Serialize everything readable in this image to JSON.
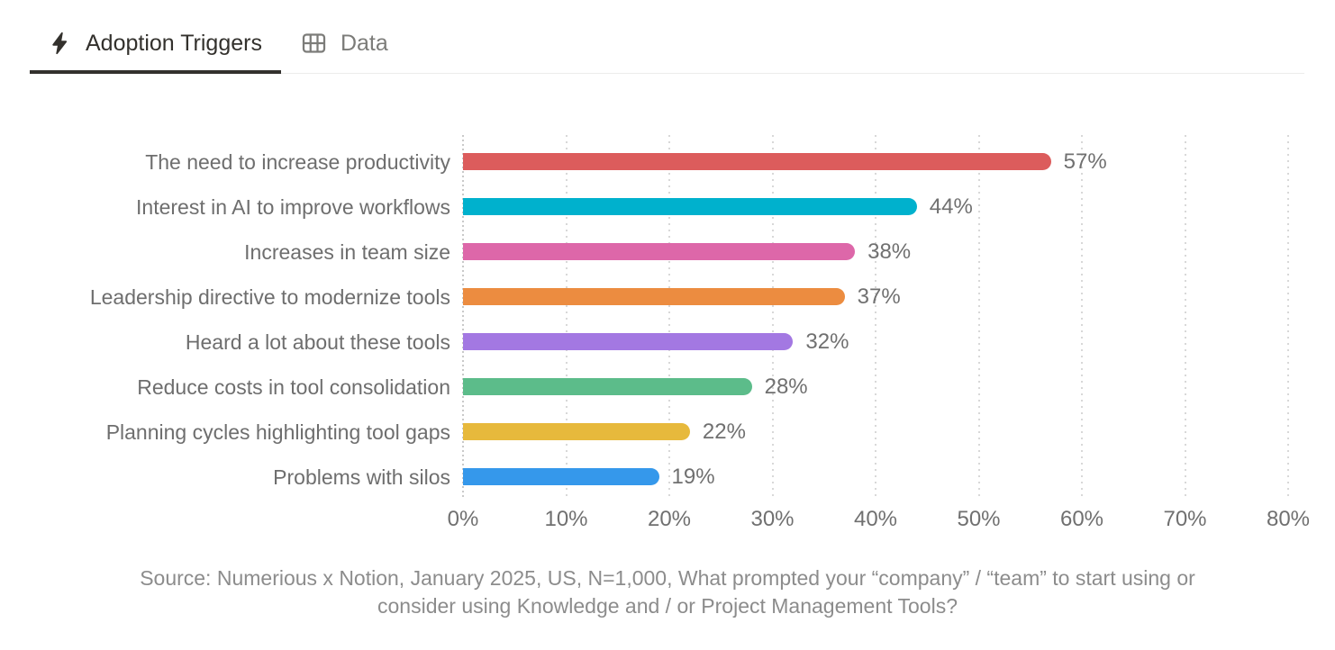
{
  "tabs": [
    {
      "label": "Adoption Triggers",
      "icon": "lightning-bolt-icon",
      "active": true
    },
    {
      "label": "Data",
      "icon": "table-icon",
      "active": false
    }
  ],
  "chart_data": {
    "type": "bar",
    "orientation": "horizontal",
    "title": "Adoption Triggers",
    "categories": [
      "The need to increase productivity",
      "Interest in AI to improve workflows",
      "Increases in team size",
      "Leadership directive to modernize tools",
      "Heard a lot about these tools",
      "Reduce costs in tool consolidation",
      "Planning cycles highlighting tool gaps",
      "Problems with silos"
    ],
    "values": [
      57,
      44,
      38,
      37,
      32,
      28,
      22,
      19
    ],
    "value_labels": [
      "57%",
      "44%",
      "38%",
      "37%",
      "32%",
      "28%",
      "22%",
      "19%"
    ],
    "bar_colors": [
      "#DC5C5C",
      "#00B1CD",
      "#DD67A9",
      "#EC8C40",
      "#A378E2",
      "#5CBC8A",
      "#E7B93C",
      "#3598EB"
    ],
    "x_ticks": [
      "0%",
      "10%",
      "20%",
      "30%",
      "40%",
      "50%",
      "60%",
      "70%",
      "80%"
    ],
    "xlim": [
      0,
      80
    ],
    "grid": "dotted-vertical",
    "legend": "none"
  },
  "source": {
    "line1": "Source: Numerious x Notion, January 2025, US, N=1,000, What prompted your “company” / “team” to start using or",
    "line2": "consider using Knowledge and / or Project Management Tools?"
  },
  "colors": {
    "active_tab_text": "#33312d",
    "inactive_tab_text": "#7c7c79",
    "tab_underline": "#33312d",
    "tabbar_border": "#ececeb",
    "category_label_text": "#6e6e6e",
    "value_label_text": "#707070",
    "tick_label_text": "#707070",
    "source_text": "#8c8c8c",
    "gridline": "#d8d8d8",
    "background": "#ffffff"
  }
}
